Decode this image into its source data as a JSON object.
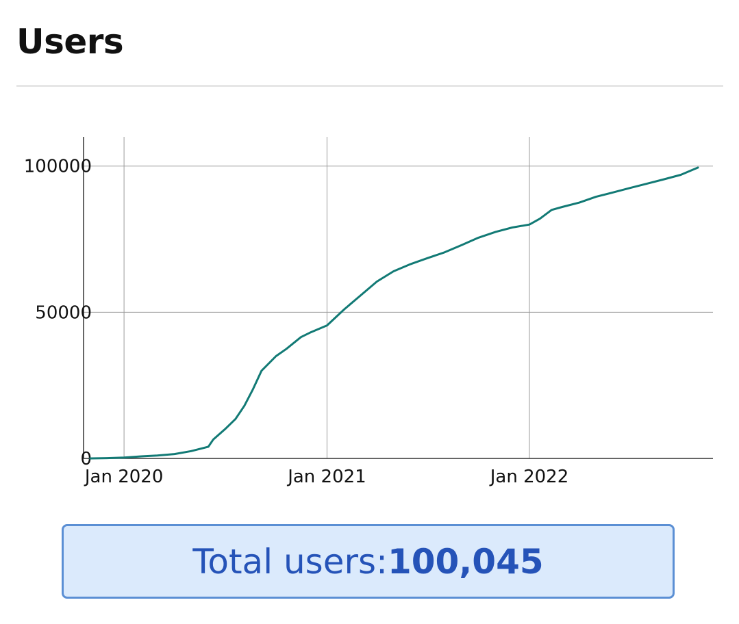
{
  "page": {
    "title": "Users"
  },
  "summary": {
    "label": "Total users: ",
    "value": "100,045"
  },
  "colors": {
    "line": "#127a75",
    "grid": "#9a9a9a",
    "axis": "#333333",
    "box_background": "#dbeafc",
    "box_border": "#5b8fd4",
    "box_text": "#2553b8"
  },
  "chart_data": {
    "type": "line",
    "title": "",
    "xlabel": "",
    "ylabel": "",
    "x_tick_labels": [
      "Jan 2020",
      "Jan 2021",
      "Jan 2022"
    ],
    "x_ticks": [
      "2020-01-01",
      "2021-01-01",
      "2022-01-01"
    ],
    "y_ticks": [
      0,
      50000,
      100000
    ],
    "y_tick_labels": [
      "0",
      "50000",
      "100000"
    ],
    "xlim": [
      "2019-10-20",
      "2022-11-28"
    ],
    "ylim": [
      0,
      110000
    ],
    "grid": true,
    "legend": "none",
    "series": [
      {
        "x": [
          "2019-11-01",
          "2019-12-01",
          "2020-01-01",
          "2020-02-01",
          "2020-03-01",
          "2020-04-01",
          "2020-05-01",
          "2020-06-01",
          "2020-06-10",
          "2020-07-01",
          "2020-07-20",
          "2020-08-05",
          "2020-08-20",
          "2020-09-05",
          "2020-10-01",
          "2020-10-20",
          "2020-11-15",
          "2020-12-01",
          "2021-01-01",
          "2021-02-01",
          "2021-03-01",
          "2021-04-01",
          "2021-05-01",
          "2021-06-01",
          "2021-07-01",
          "2021-08-01",
          "2021-09-01",
          "2021-10-01",
          "2021-11-01",
          "2021-12-01",
          "2022-01-01",
          "2022-01-20",
          "2022-02-10",
          "2022-03-01",
          "2022-04-01",
          "2022-05-01",
          "2022-06-01",
          "2022-07-01",
          "2022-08-01",
          "2022-09-01",
          "2022-10-01",
          "2022-11-01"
        ],
        "y": [
          0,
          100,
          300,
          700,
          1000,
          1500,
          2500,
          4000,
          6500,
          10000,
          13500,
          18000,
          23500,
          30000,
          35000,
          37500,
          41500,
          43000,
          45500,
          51000,
          55500,
          60500,
          64000,
          66500,
          68500,
          70500,
          73000,
          75500,
          77500,
          79000,
          80000,
          82000,
          85000,
          86000,
          87500,
          89500,
          91000,
          92500,
          94000,
          95500,
          97000,
          99500
        ]
      }
    ]
  }
}
